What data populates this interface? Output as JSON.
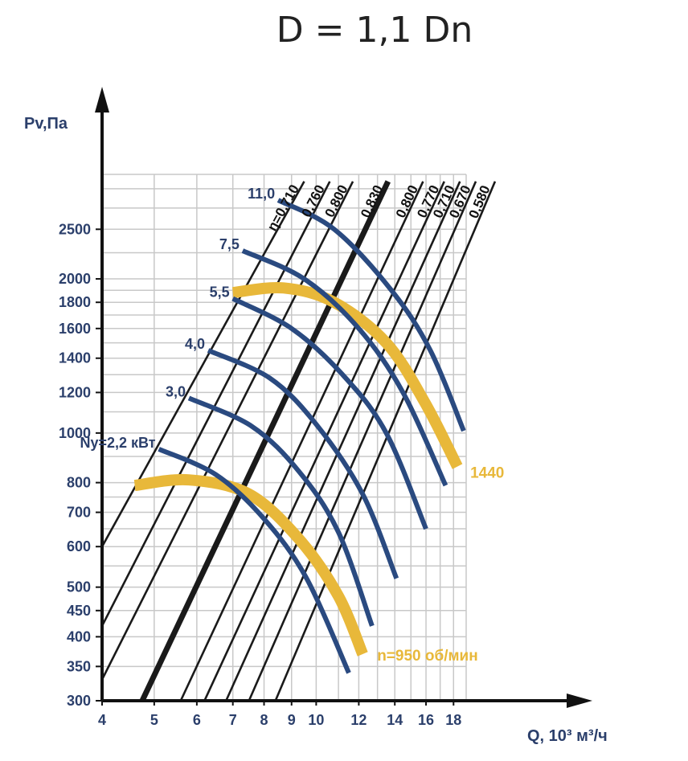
{
  "chart_data": {
    "type": "line",
    "title": "D = 1,1 Dn",
    "xlabel": "Q, 10³ м³/ч",
    "ylabel": "Pv,Па",
    "x_scale": "log",
    "y_scale": "log",
    "xlim": [
      4,
      19
    ],
    "ylim": [
      300,
      3200
    ],
    "x_ticks": [
      4,
      5,
      6,
      7,
      8,
      9,
      10,
      12,
      14,
      16,
      18
    ],
    "y_ticks": [
      300,
      350,
      400,
      450,
      500,
      600,
      700,
      800,
      1000,
      1200,
      1400,
      1600,
      1800,
      2000,
      2500
    ],
    "grid": true,
    "colors": {
      "power": "#2a4a80",
      "speed": "#e8b83a",
      "efficiency": "#1a1a1a",
      "grid": "#c8c8c8"
    },
    "efficiency_lines": [
      {
        "label": "η=0,710",
        "bold": false,
        "points": [
          [
            4,
            600
          ],
          [
            9.5,
            3100
          ]
        ]
      },
      {
        "label": "0,760",
        "bold": false,
        "points": [
          [
            4,
            420
          ],
          [
            10.6,
            3100
          ]
        ]
      },
      {
        "label": "0,800",
        "bold": false,
        "points": [
          [
            4,
            330
          ],
          [
            11.7,
            3100
          ]
        ]
      },
      {
        "label": "0,830",
        "bold": true,
        "points": [
          [
            4.75,
            300
          ],
          [
            13.6,
            3100
          ]
        ]
      },
      {
        "label": "0,800",
        "bold": false,
        "points": [
          [
            5.6,
            300
          ],
          [
            15.8,
            3100
          ]
        ]
      },
      {
        "label": "0,770",
        "bold": false,
        "points": [
          [
            6.2,
            300
          ],
          [
            17.3,
            3100
          ]
        ]
      },
      {
        "label": "0,710",
        "bold": false,
        "points": [
          [
            6.8,
            300
          ],
          [
            18.5,
            3100
          ]
        ]
      },
      {
        "label": "0,670",
        "bold": false,
        "points": [
          [
            7.5,
            300
          ],
          [
            19.8,
            3100
          ]
        ]
      },
      {
        "label": "0,580",
        "bold": false,
        "points": [
          [
            8.4,
            300
          ],
          [
            21.5,
            3100
          ]
        ]
      }
    ],
    "power_curves": [
      {
        "label": "Ny=2,2 кВт",
        "points": [
          [
            5.1,
            930
          ],
          [
            6.5,
            830
          ],
          [
            8.0,
            680
          ],
          [
            9.6,
            520
          ],
          [
            11.5,
            340
          ]
        ]
      },
      {
        "label": "3,0",
        "points": [
          [
            5.8,
            1170
          ],
          [
            7.6,
            1030
          ],
          [
            9.3,
            840
          ],
          [
            11.0,
            640
          ],
          [
            12.7,
            420
          ]
        ]
      },
      {
        "label": "4,0",
        "points": [
          [
            6.3,
            1450
          ],
          [
            8.2,
            1280
          ],
          [
            10.0,
            1040
          ],
          [
            12.2,
            760
          ],
          [
            14.1,
            520
          ]
        ]
      },
      {
        "label": "5,5",
        "points": [
          [
            7.0,
            1830
          ],
          [
            9.0,
            1600
          ],
          [
            11.2,
            1300
          ],
          [
            13.5,
            1000
          ],
          [
            16.0,
            650
          ]
        ]
      },
      {
        "label": "7,5",
        "points": [
          [
            7.3,
            2270
          ],
          [
            9.5,
            2000
          ],
          [
            12.0,
            1600
          ],
          [
            14.5,
            1200
          ],
          [
            17.4,
            790
          ]
        ]
      },
      {
        "label": "11,0",
        "points": [
          [
            8.5,
            2850
          ],
          [
            10.8,
            2500
          ],
          [
            13.8,
            1900
          ],
          [
            16.3,
            1450
          ],
          [
            18.8,
            1010
          ]
        ]
      }
    ],
    "speed_curves": [
      {
        "label": "n=950 об/мин",
        "points": [
          [
            4.6,
            790
          ],
          [
            5.8,
            810
          ],
          [
            7.5,
            760
          ],
          [
            9.3,
            620
          ],
          [
            11.0,
            480
          ],
          [
            12.2,
            370
          ]
        ]
      },
      {
        "label": "1440",
        "points": [
          [
            7.0,
            1880
          ],
          [
            8.7,
            1920
          ],
          [
            10.8,
            1800
          ],
          [
            13.5,
            1500
          ],
          [
            15.9,
            1150
          ],
          [
            18.3,
            860
          ]
        ]
      }
    ]
  }
}
